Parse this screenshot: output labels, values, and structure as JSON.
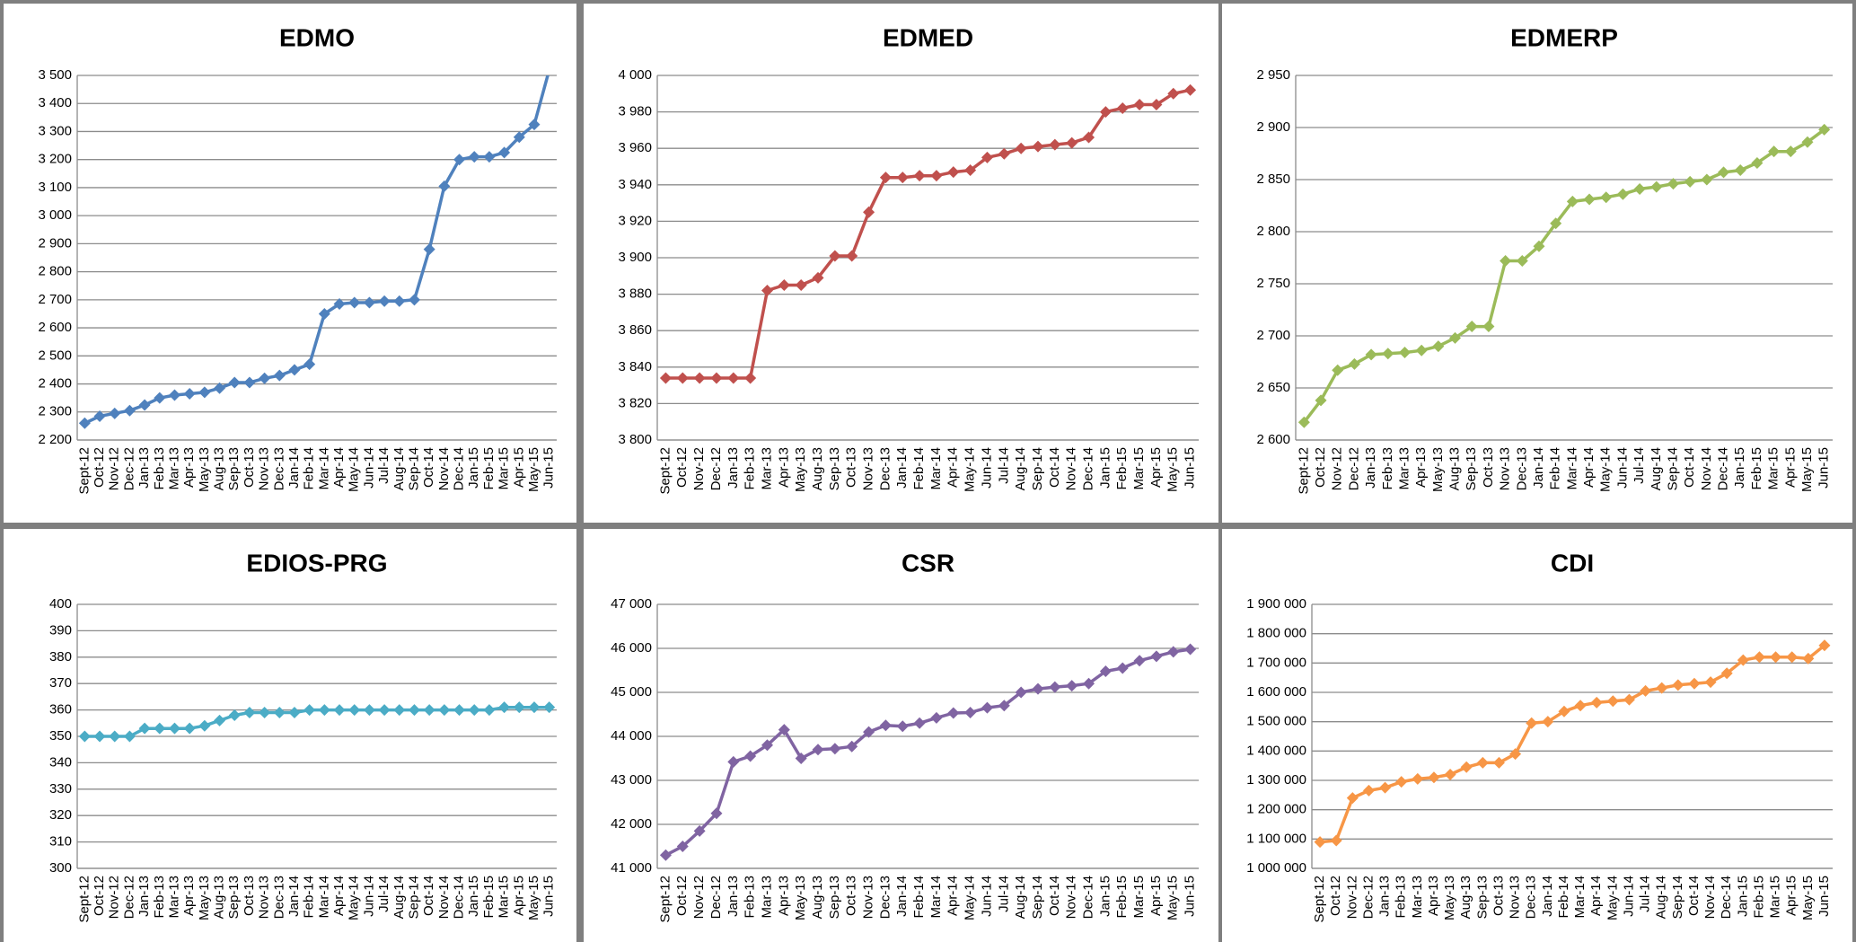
{
  "chart_data": [
    {
      "type": "line",
      "title": "EDMO",
      "color": "#4f81bd",
      "categories": [
        "Sept-12",
        "Oct-12",
        "Nov-12",
        "Dec-12",
        "Jan-13",
        "Feb-13",
        "Mar-13",
        "Apr-13",
        "May-13",
        "Aug-13",
        "Sep-13",
        "Oct-13",
        "Nov-13",
        "Dec-13",
        "Jan-14",
        "Feb-14",
        "Mar-14",
        "Apr-14",
        "May-14",
        "Jun-14",
        "Jul-14",
        "Aug-14",
        "Sep-14",
        "Oct-14",
        "Nov-14",
        "Dec-14",
        "Jan-15",
        "Feb-15",
        "Mar-15",
        "Apr-15",
        "May-15",
        "Jun-15"
      ],
      "values": [
        2260,
        2285,
        2295,
        2305,
        2325,
        2350,
        2360,
        2365,
        2370,
        2385,
        2405,
        2405,
        2420,
        2430,
        2450,
        2470,
        2650,
        2685,
        2690,
        2690,
        2695,
        2695,
        2700,
        2880,
        3105,
        3200,
        3210,
        3210,
        3225,
        3280,
        3325,
        3520
      ],
      "ylim": [
        2200,
        3500
      ],
      "yticks": [
        {
          "value": 2200,
          "label": "2 200"
        },
        {
          "value": 2300,
          "label": "2 300"
        },
        {
          "value": 2400,
          "label": "2 400"
        },
        {
          "value": 2500,
          "label": "2 500"
        },
        {
          "value": 2600,
          "label": "2 600"
        },
        {
          "value": 2700,
          "label": "2 700"
        },
        {
          "value": 2800,
          "label": "2 800"
        },
        {
          "value": 2900,
          "label": "2 900"
        },
        {
          "value": 3000,
          "label": "3 000"
        },
        {
          "value": 3100,
          "label": "3 100"
        },
        {
          "value": 3200,
          "label": "3 200"
        },
        {
          "value": 3300,
          "label": "3 300"
        },
        {
          "value": 3400,
          "label": "3 400"
        },
        {
          "value": 3500,
          "label": "3 500"
        }
      ],
      "grid": true
    },
    {
      "type": "line",
      "title": "EDMED",
      "color": "#c0504d",
      "categories": [
        "Sept-12",
        "Oct-12",
        "Nov-12",
        "Dec-12",
        "Jan-13",
        "Feb-13",
        "Mar-13",
        "Apr-13",
        "May-13",
        "Aug-13",
        "Sep-13",
        "Oct-13",
        "Nov-13",
        "Dec-13",
        "Jan-14",
        "Feb-14",
        "Mar-14",
        "Apr-14",
        "May-14",
        "Jun-14",
        "Jul-14",
        "Aug-14",
        "Sep-14",
        "Oct-14",
        "Nov-14",
        "Dec-14",
        "Jan-15",
        "Feb-15",
        "Mar-15",
        "Apr-15",
        "May-15",
        "Jun-15"
      ],
      "values": [
        3834,
        3834,
        3834,
        3834,
        3834,
        3834,
        3882,
        3885,
        3885,
        3889,
        3901,
        3901,
        3925,
        3944,
        3944,
        3945,
        3945,
        3947,
        3948,
        3955,
        3957,
        3960,
        3961,
        3962,
        3963,
        3966,
        3980,
        3982,
        3984,
        3984,
        3990,
        3992
      ],
      "ylim": [
        3800,
        4000
      ],
      "yticks": [
        {
          "value": 3800,
          "label": "3 800"
        },
        {
          "value": 3820,
          "label": "3 820"
        },
        {
          "value": 3840,
          "label": "3 840"
        },
        {
          "value": 3860,
          "label": "3 860"
        },
        {
          "value": 3880,
          "label": "3 880"
        },
        {
          "value": 3900,
          "label": "3 900"
        },
        {
          "value": 3920,
          "label": "3 920"
        },
        {
          "value": 3940,
          "label": "3 940"
        },
        {
          "value": 3960,
          "label": "3 960"
        },
        {
          "value": 3980,
          "label": "3 980"
        },
        {
          "value": 4000,
          "label": "4 000"
        }
      ],
      "grid": true
    },
    {
      "type": "line",
      "title": "EDMERP",
      "color": "#9bbb59",
      "categories": [
        "Sept-12",
        "Oct-12",
        "Nov-12",
        "Dec-12",
        "Jan-13",
        "Feb-13",
        "Mar-13",
        "Apr-13",
        "May-13",
        "Aug-13",
        "Sep-13",
        "Oct-13",
        "Nov-13",
        "Dec-13",
        "Jan-14",
        "Feb-14",
        "Mar-14",
        "Apr-14",
        "May-14",
        "Jun-14",
        "Jul-14",
        "Aug-14",
        "Sep-14",
        "Oct-14",
        "Nov-14",
        "Dec-14",
        "Jan-15",
        "Feb-15",
        "Mar-15",
        "Apr-15",
        "May-15",
        "Jun-15"
      ],
      "values": [
        2617,
        2638,
        2667,
        2673,
        2682,
        2683,
        2684,
        2686,
        2690,
        2698,
        2709,
        2709,
        2772,
        2772,
        2786,
        2808,
        2829,
        2831,
        2833,
        2836,
        2841,
        2843,
        2846,
        2848,
        2850,
        2857,
        2859,
        2866,
        2877,
        2877,
        2886,
        2898
      ],
      "ylim": [
        2600,
        2950
      ],
      "yticks": [
        {
          "value": 2600,
          "label": "2 600"
        },
        {
          "value": 2650,
          "label": "2 650"
        },
        {
          "value": 2700,
          "label": "2 700"
        },
        {
          "value": 2750,
          "label": "2 750"
        },
        {
          "value": 2800,
          "label": "2 800"
        },
        {
          "value": 2850,
          "label": "2 850"
        },
        {
          "value": 2900,
          "label": "2 900"
        },
        {
          "value": 2950,
          "label": "2 950"
        }
      ],
      "grid": true
    },
    {
      "type": "line",
      "title": "EDIOS-PRG",
      "color": "#4bacc6",
      "categories": [
        "Sept-12",
        "Oct-12",
        "Nov-12",
        "Dec-12",
        "Jan-13",
        "Feb-13",
        "Mar-13",
        "Apr-13",
        "May-13",
        "Aug-13",
        "Sep-13",
        "Oct-13",
        "Nov-13",
        "Dec-13",
        "Jan-14",
        "Feb-14",
        "Mar-14",
        "Apr-14",
        "May-14",
        "Jun-14",
        "Jul-14",
        "Aug-14",
        "Sep-14",
        "Oct-14",
        "Nov-14",
        "Dec-14",
        "Jan-15",
        "Feb-15",
        "Mar-15",
        "Apr-15",
        "May-15",
        "Jun-15"
      ],
      "values": [
        350,
        350,
        350,
        350,
        353,
        353,
        353,
        353,
        354,
        356,
        358,
        359,
        359,
        359,
        359,
        360,
        360,
        360,
        360,
        360,
        360,
        360,
        360,
        360,
        360,
        360,
        360,
        360,
        361,
        361,
        361,
        361
      ],
      "ylim": [
        300,
        400
      ],
      "yticks": [
        300,
        310,
        320,
        330,
        340,
        350,
        360,
        370,
        380,
        390,
        400
      ],
      "grid": true
    },
    {
      "type": "line",
      "title": "CSR",
      "color": "#8064a2",
      "categories": [
        "Sept-12",
        "Oct-12",
        "Nov-12",
        "Dec-12",
        "Jan-13",
        "Feb-13",
        "Mar-13",
        "Apr-13",
        "May-13",
        "Aug-13",
        "Sep-13",
        "Oct-13",
        "Nov-13",
        "Dec-13",
        "Jan-14",
        "Feb-14",
        "Mar-14",
        "Apr-14",
        "May-14",
        "Jun-14",
        "Jul-14",
        "Aug-14",
        "Sep-14",
        "Oct-14",
        "Nov-14",
        "Dec-14",
        "Jan-15",
        "Feb-15",
        "Mar-15",
        "Apr-15",
        "May-15",
        "Jun-15"
      ],
      "values": [
        41300,
        41500,
        41850,
        42250,
        43420,
        43550,
        43800,
        44150,
        43500,
        43700,
        43720,
        43770,
        44100,
        44250,
        44230,
        44300,
        44420,
        44530,
        44540,
        44650,
        44700,
        45000,
        45080,
        45120,
        45150,
        45200,
        45480,
        45550,
        45720,
        45820,
        45920,
        45980
      ],
      "ylim": [
        41000,
        47000
      ],
      "yticks": [
        {
          "value": 41000,
          "label": "41 000"
        },
        {
          "value": 42000,
          "label": "42 000"
        },
        {
          "value": 43000,
          "label": "43 000"
        },
        {
          "value": 44000,
          "label": "44 000"
        },
        {
          "value": 45000,
          "label": "45 000"
        },
        {
          "value": 46000,
          "label": "46 000"
        },
        {
          "value": 47000,
          "label": "47 000"
        }
      ],
      "grid": true
    },
    {
      "type": "line",
      "title": "CDI",
      "color": "#f79646",
      "categories": [
        "Sept-12",
        "Oct-12",
        "Nov-12",
        "Dec-12",
        "Jan-13",
        "Feb-13",
        "Mar-13",
        "Apr-13",
        "May-13",
        "Aug-13",
        "Sep-13",
        "Oct-13",
        "Nov-13",
        "Dec-13",
        "Jan-14",
        "Feb-14",
        "Mar-14",
        "Apr-14",
        "May-14",
        "Jun-14",
        "Jul-14",
        "Aug-14",
        "Sep-14",
        "Oct-14",
        "Nov-14",
        "Dec-14",
        "Jan-15",
        "Feb-15",
        "Mar-15",
        "Apr-15",
        "May-15",
        "Jun-15"
      ],
      "values": [
        1090000,
        1095000,
        1240000,
        1265000,
        1275000,
        1295000,
        1305000,
        1310000,
        1320000,
        1345000,
        1360000,
        1360000,
        1390000,
        1495000,
        1500000,
        1535000,
        1555000,
        1565000,
        1570000,
        1575000,
        1605000,
        1615000,
        1625000,
        1630000,
        1635000,
        1665000,
        1710000,
        1720000,
        1720000,
        1720000,
        1715000,
        1760000
      ],
      "ylim": [
        1000000,
        1900000
      ],
      "yticks": [
        {
          "value": 1000000,
          "label": "1 000 000"
        },
        {
          "value": 1100000,
          "label": "1 100 000"
        },
        {
          "value": 1200000,
          "label": "1 200 000"
        },
        {
          "value": 1300000,
          "label": "1 300 000"
        },
        {
          "value": 1400000,
          "label": "1 400 000"
        },
        {
          "value": 1500000,
          "label": "1 500 000"
        },
        {
          "value": 1600000,
          "label": "1 600 000"
        },
        {
          "value": 1700000,
          "label": "1 700 000"
        },
        {
          "value": 1800000,
          "label": "1 800 000"
        },
        {
          "value": 1900000,
          "label": "1 900 000"
        }
      ],
      "grid": true
    }
  ]
}
